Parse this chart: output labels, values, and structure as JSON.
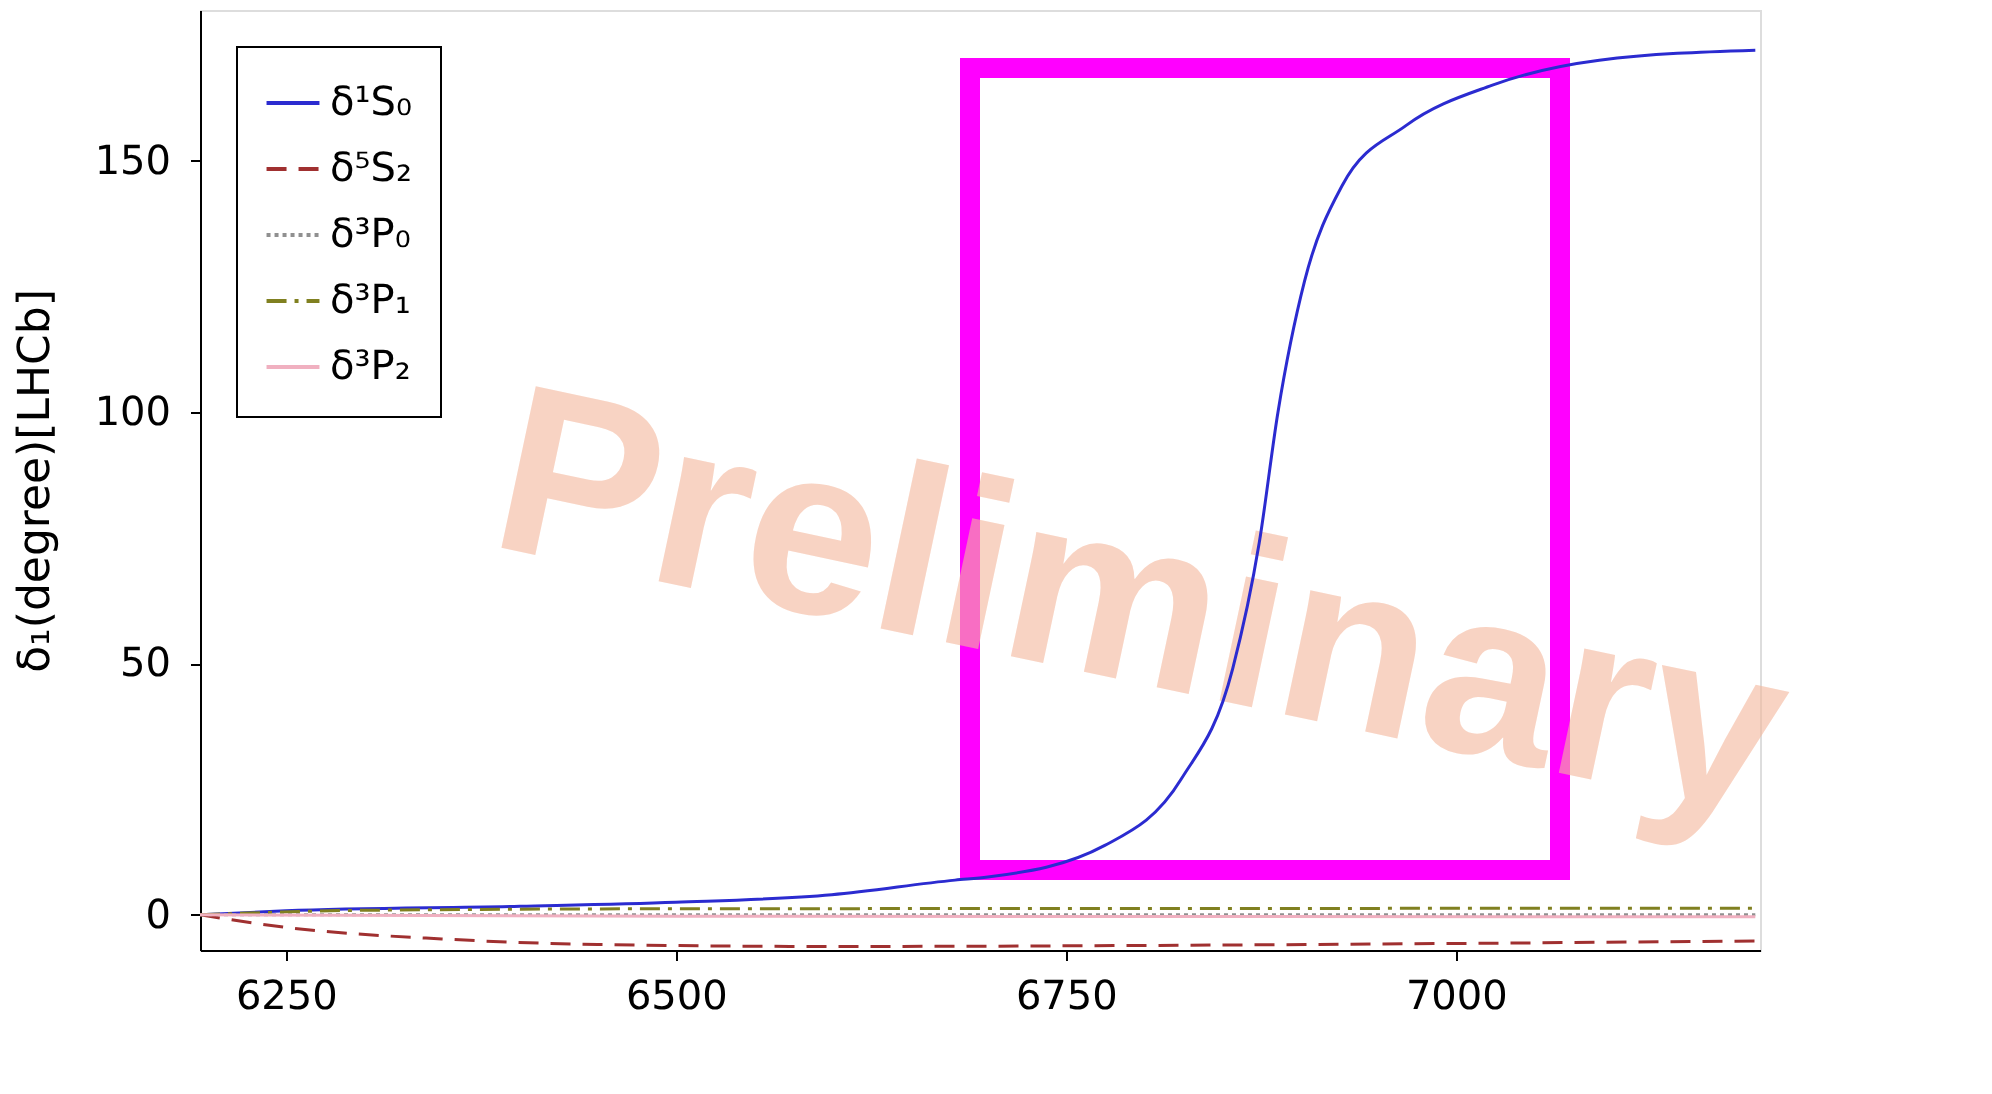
{
  "chart_data": {
    "type": "line",
    "ylabel": "δ₁(degree)[LHCb]",
    "xlim": [
      6195,
      7195
    ],
    "ylim": [
      -7,
      180
    ],
    "xticks": [
      6250,
      6500,
      6750,
      7000
    ],
    "yticks": [
      0,
      50,
      100,
      150
    ],
    "grid": false,
    "legend": "top left",
    "marker": "none",
    "series": [
      {
        "name": "δ¹S₀",
        "color": "#2b2bd0",
        "line_style": "solid",
        "x": [
          6195,
          6250,
          6400,
          6500,
          6600,
          6679,
          6700,
          6775,
          6824,
          6857,
          6874,
          6886,
          6903,
          6927,
          6968,
          7023,
          7092,
          7192
        ],
        "values": [
          0,
          0.8,
          1.7,
          2.5,
          4,
          6.9,
          7.5,
          13.8,
          27,
          49,
          74,
          100,
          126,
          145,
          157,
          165,
          170,
          172
        ]
      },
      {
        "name": "δ⁵S₂",
        "color": "#a03030",
        "line_style": "dashed",
        "x": [
          6195,
          6250,
          6350,
          6450,
          6600,
          6800,
          7000,
          7192
        ],
        "values": [
          0,
          -2.5,
          -4.8,
          -5.9,
          -6.3,
          -6.1,
          -5.7,
          -5.2
        ]
      },
      {
        "name": "δ³P₀",
        "color": "#909090",
        "line_style": "dotted",
        "x": [
          6195,
          7192
        ],
        "values": [
          0,
          0
        ]
      },
      {
        "name": "δ³P₁",
        "color": "#808020",
        "line_style": "dashdot",
        "x": [
          6195,
          6300,
          6500,
          7192
        ],
        "values": [
          0,
          0.9,
          1.2,
          1.3
        ]
      },
      {
        "name": "δ³P₂",
        "color": "#f0b0c0",
        "line_style": "solid",
        "x": [
          6195,
          6500,
          7192
        ],
        "values": [
          0,
          -0.3,
          -0.4
        ]
      }
    ],
    "annotations": [
      "Preliminary"
    ]
  }
}
